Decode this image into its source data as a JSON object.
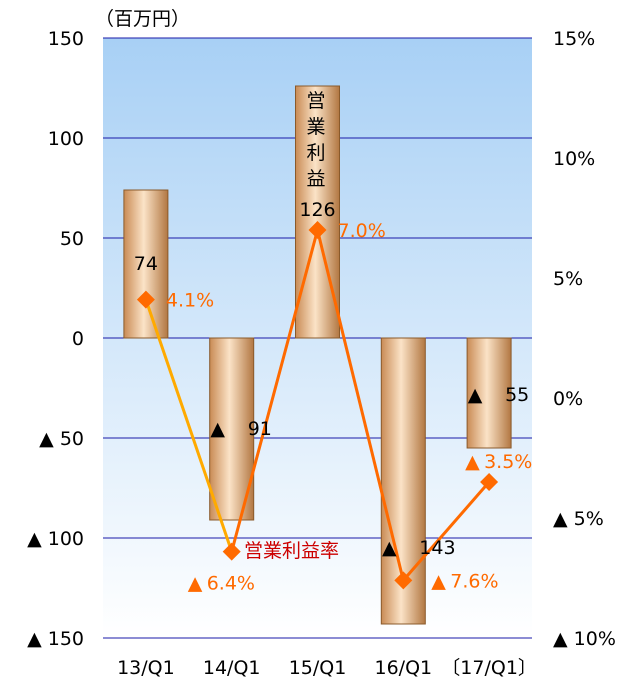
{
  "chart_data": {
    "type": "bar+line",
    "unit_label": "（百万円）",
    "categories": [
      "13/Q1",
      "14/Q1",
      "15/Q1",
      "16/Q1",
      "〔17/Q1〕"
    ],
    "series": [
      {
        "name": "営業利益",
        "type": "bar",
        "axis": "left",
        "values": [
          74,
          -91,
          126,
          -143,
          -55
        ],
        "labels": [
          "74",
          "91",
          "126",
          "143",
          "55"
        ]
      },
      {
        "name": "営業利益率",
        "type": "line",
        "axis": "right",
        "values": [
          4.1,
          -6.4,
          7.0,
          -7.6,
          -3.5
        ],
        "labels": [
          "4.1%",
          "6.4%",
          "7.0%",
          "7.6%",
          "3.5%"
        ]
      }
    ],
    "left_axis": {
      "min": -150,
      "max": 150,
      "ticks": [
        150,
        100,
        50,
        0,
        -50,
        -100,
        -150
      ],
      "tick_labels": [
        "150",
        "100",
        "50",
        "0",
        "▲ 50",
        "▲ 100",
        "▲ 150"
      ]
    },
    "right_axis": {
      "min": -10,
      "max": 15,
      "ticks": [
        15,
        10,
        5,
        0,
        -5,
        -10
      ],
      "tick_labels": [
        "15%",
        "10%",
        "5%",
        "0%",
        "▲ 5%",
        "▲ 10%"
      ]
    },
    "negative_marker": "▲",
    "grid": true,
    "colors": {
      "bar_edge": "#8a5a2b",
      "bar_mid": "#fbe3c7",
      "bar_dark": "#c98b55",
      "line": "#ff6a00",
      "line_start": "#ffaa00",
      "marker": "#ff6a00",
      "grid": "#1a1aa8",
      "bg_top": "#a8d0f5",
      "bg_bottom": "#ffffff",
      "annotation": "#cc0000"
    }
  }
}
